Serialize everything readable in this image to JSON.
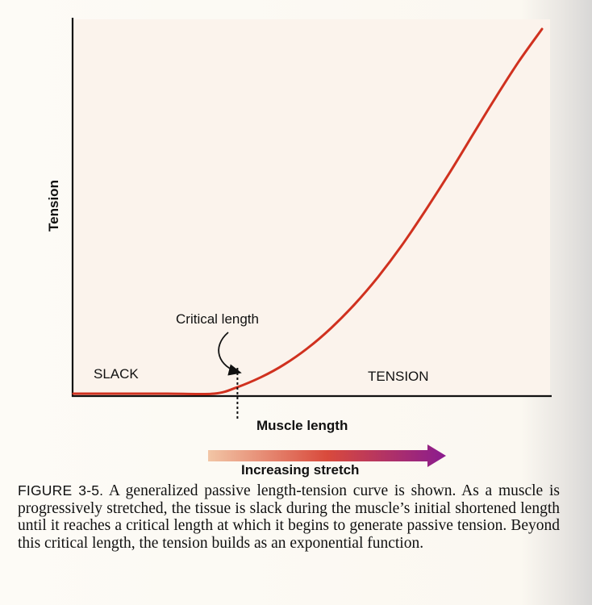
{
  "chart_data": {
    "type": "line",
    "ylabel": "Tension",
    "xlabel": "Muscle length",
    "series": [
      {
        "curve": "exponential",
        "color": "#d0311f",
        "x": [
          0,
          0.1,
          0.2,
          0.3,
          0.35,
          0.4,
          0.45,
          0.5,
          0.55,
          0.6,
          0.65,
          0.7,
          0.75,
          0.8,
          0.85,
          0.9,
          0.95,
          1.0
        ],
        "y": [
          0,
          0,
          0,
          0,
          0.018,
          0.045,
          0.08,
          0.125,
          0.18,
          0.245,
          0.32,
          0.405,
          0.5,
          0.6,
          0.705,
          0.81,
          0.91,
          1.0
        ]
      }
    ],
    "critical_length_x": 0.35,
    "xlim": [
      0,
      1
    ],
    "ylim": [
      0,
      1
    ],
    "annotations": {
      "critical_length": "Critical length",
      "slack": "SLACK",
      "tension": "TENSION"
    },
    "stretch_arrow": {
      "label": "Increasing stretch",
      "gradient_start": "#f2c6a6",
      "gradient_mid": "#d94a3c",
      "gradient_end": "#8a1b8f"
    },
    "colors": {
      "plot_background": "#fbf3ec",
      "axis": "#111111"
    }
  },
  "caption": {
    "figure_label": "FIGURE 3-5.",
    "text": " A generalized passive length-tension curve is shown. As a muscle is progressively stretched, the tissue is slack during the muscle’s initial shortened length until it reaches a critical length at which it begins to generate passive tension. Beyond this critical length, the tension builds as an exponential function."
  }
}
